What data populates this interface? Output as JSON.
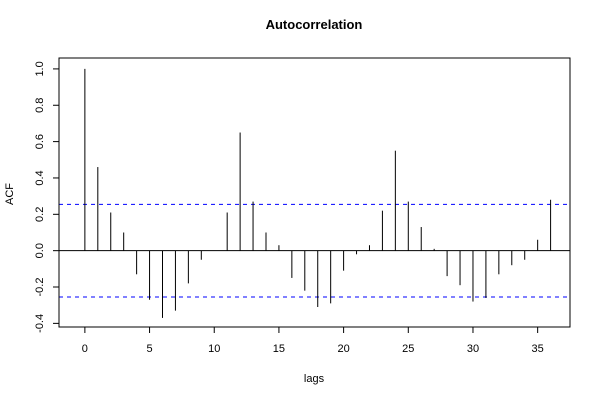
{
  "chart_data": {
    "type": "bar",
    "title": "Autocorrelation",
    "xlabel": "lags",
    "ylabel": "ACF",
    "xlim": [
      -2,
      37.5
    ],
    "ylim": [
      -0.42,
      1.06
    ],
    "x_ticks": [
      0,
      5,
      10,
      15,
      20,
      25,
      30,
      35
    ],
    "y_ticks": [
      -0.4,
      -0.2,
      0.0,
      0.2,
      0.4,
      0.6,
      0.8,
      1.0
    ],
    "x_tick_labels": [
      "0",
      "5",
      "10",
      "15",
      "20",
      "25",
      "30",
      "35"
    ],
    "y_tick_labels": [
      "-0.4",
      "-0.2",
      "0.0",
      "0.2",
      "0.4",
      "0.6",
      "0.8",
      "1.0"
    ],
    "lags": [
      0,
      1,
      2,
      3,
      4,
      5,
      6,
      7,
      8,
      9,
      10,
      11,
      12,
      13,
      14,
      15,
      16,
      17,
      18,
      19,
      20,
      21,
      22,
      23,
      24,
      25,
      26,
      27,
      28,
      29,
      30,
      31,
      32,
      33,
      34,
      35,
      36
    ],
    "acf": [
      1.0,
      0.46,
      0.21,
      0.1,
      -0.13,
      -0.27,
      -0.37,
      -0.33,
      -0.18,
      -0.05,
      0.0,
      0.21,
      0.65,
      0.27,
      0.1,
      0.03,
      -0.15,
      -0.22,
      -0.31,
      -0.29,
      -0.11,
      -0.02,
      0.03,
      0.22,
      0.55,
      0.27,
      0.13,
      0.01,
      -0.14,
      -0.19,
      -0.28,
      -0.26,
      -0.13,
      -0.08,
      -0.05,
      0.06,
      0.28
    ],
    "confidence_bound": 0.255,
    "colors": {
      "bars": "#000000",
      "confidence": "#0000ff",
      "zero_line": "#000000",
      "frame": "#000000"
    }
  }
}
